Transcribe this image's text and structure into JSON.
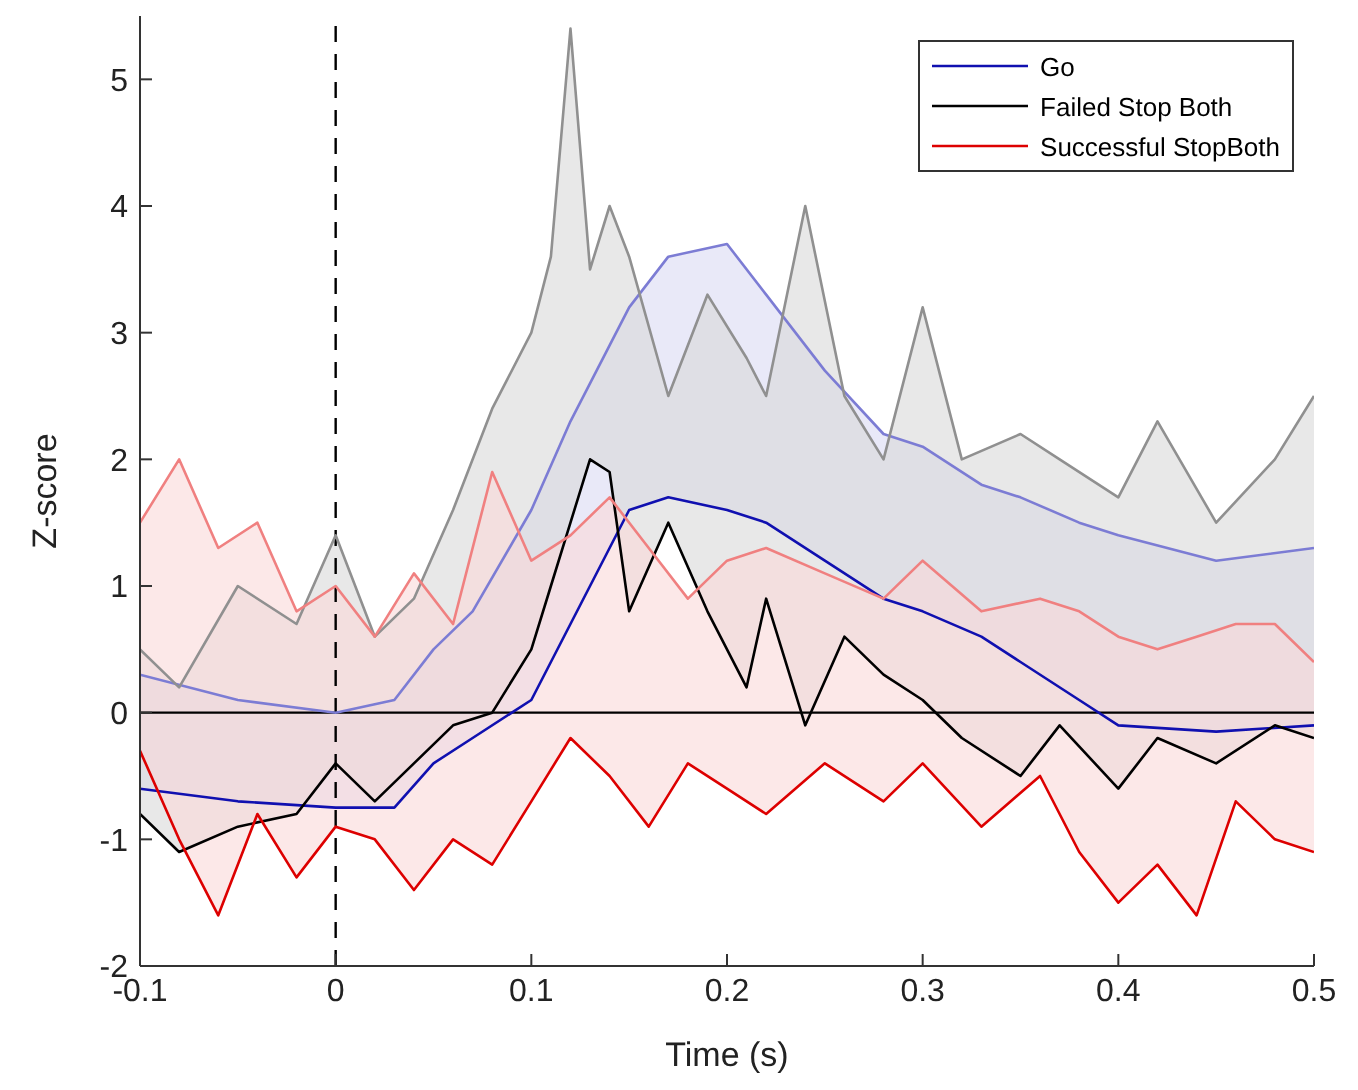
{
  "chart_data": {
    "type": "line",
    "xlabel": "Time (s)",
    "ylabel": "Z-score",
    "xlim": [
      -0.1,
      0.5
    ],
    "xticks": [
      -0.1,
      0,
      0.1,
      0.2,
      0.3,
      0.4,
      0.5
    ],
    "ylim": [
      -2,
      5.5
    ],
    "yticks": [
      -2,
      -1,
      0,
      1,
      2,
      3,
      4,
      5
    ],
    "legend": "top right",
    "marker": "none",
    "line_style": "solid",
    "ref_lines": [
      {
        "axis": "y",
        "value": 0,
        "color": "#000000",
        "line_style": "solid"
      },
      {
        "axis": "x",
        "value": 0,
        "color": "#000000",
        "line_style": "dashed"
      }
    ],
    "series": [
      {
        "name": "Go",
        "color": "#1010b0",
        "x": [
          -0.1,
          -0.05,
          0,
          0.03,
          0.05,
          0.07,
          0.1,
          0.12,
          0.14,
          0.15,
          0.17,
          0.2,
          0.22,
          0.25,
          0.28,
          0.3,
          0.33,
          0.35,
          0.38,
          0.4,
          0.45,
          0.5
        ],
        "values": [
          -0.6,
          -0.7,
          -0.75,
          -0.75,
          -0.4,
          -0.2,
          0.1,
          0.7,
          1.3,
          1.6,
          1.7,
          1.6,
          1.5,
          1.2,
          0.9,
          0.8,
          0.6,
          0.4,
          0.1,
          -0.1,
          -0.15,
          -0.1
        ],
        "lower": [
          -0.6,
          -0.7,
          -0.75,
          -0.75,
          -0.4,
          -0.2,
          0.1,
          0.7,
          1.3,
          1.6,
          1.7,
          1.6,
          1.5,
          1.2,
          0.9,
          0.8,
          0.6,
          0.4,
          0.1,
          -0.1,
          -0.15,
          -0.1
        ],
        "upper": [
          0.3,
          0.1,
          0.0,
          0.1,
          0.5,
          0.8,
          1.6,
          2.3,
          2.9,
          3.2,
          3.6,
          3.7,
          3.3,
          2.7,
          2.2,
          2.1,
          1.8,
          1.7,
          1.5,
          1.4,
          1.2,
          1.3
        ]
      },
      {
        "name": "Failed Stop Both",
        "color": "#000000",
        "x": [
          -0.1,
          -0.08,
          -0.05,
          -0.02,
          0,
          0.02,
          0.04,
          0.06,
          0.08,
          0.1,
          0.11,
          0.12,
          0.13,
          0.14,
          0.15,
          0.17,
          0.19,
          0.21,
          0.22,
          0.24,
          0.26,
          0.28,
          0.3,
          0.32,
          0.35,
          0.37,
          0.4,
          0.42,
          0.45,
          0.48,
          0.5
        ],
        "values": [
          -0.8,
          -1.1,
          -0.9,
          -0.8,
          -0.4,
          -0.7,
          -0.4,
          -0.1,
          0.0,
          0.5,
          1.0,
          1.5,
          2.0,
          1.9,
          0.8,
          1.5,
          0.8,
          0.2,
          0.9,
          -0.1,
          0.6,
          0.3,
          0.1,
          -0.2,
          -0.5,
          -0.1,
          -0.6,
          -0.2,
          -0.4,
          -0.1,
          -0.2
        ],
        "lower": [
          -0.8,
          -1.1,
          -0.9,
          -0.8,
          -0.4,
          -0.7,
          -0.4,
          -0.1,
          0.0,
          0.5,
          1.0,
          1.5,
          2.0,
          1.9,
          0.8,
          1.5,
          0.8,
          0.2,
          0.9,
          -0.1,
          0.6,
          0.3,
          0.1,
          -0.2,
          -0.5,
          -0.1,
          -0.6,
          -0.2,
          -0.4,
          -0.1,
          -0.2
        ],
        "upper": [
          0.5,
          0.2,
          1.0,
          0.7,
          1.4,
          0.6,
          0.9,
          1.6,
          2.4,
          3.0,
          3.6,
          5.4,
          3.5,
          4.0,
          3.6,
          2.5,
          3.3,
          2.8,
          2.5,
          4.0,
          2.5,
          2.0,
          3.2,
          2.0,
          2.2,
          2.0,
          1.7,
          2.3,
          1.5,
          2.0,
          2.5
        ]
      },
      {
        "color": "#7c7cd4",
        "x": [
          -0.1,
          -0.05,
          0,
          0.03,
          0.05,
          0.07,
          0.1,
          0.12,
          0.14,
          0.15,
          0.17,
          0.2,
          0.22,
          0.25,
          0.28,
          0.3,
          0.33,
          0.35,
          0.38,
          0.4,
          0.45,
          0.5
        ],
        "values": [
          0.3,
          0.1,
          0.0,
          0.1,
          0.5,
          0.8,
          1.6,
          2.3,
          2.9,
          3.2,
          3.6,
          3.7,
          3.3,
          2.7,
          2.2,
          2.1,
          1.8,
          1.7,
          1.5,
          1.4,
          1.2,
          1.3
        ]
      },
      {
        "color": "#909090",
        "x": [
          -0.1,
          -0.08,
          -0.05,
          -0.02,
          0,
          0.02,
          0.04,
          0.06,
          0.08,
          0.1,
          0.11,
          0.12,
          0.13,
          0.14,
          0.15,
          0.17,
          0.19,
          0.21,
          0.22,
          0.24,
          0.26,
          0.28,
          0.3,
          0.32,
          0.35,
          0.37,
          0.4,
          0.42,
          0.45,
          0.48,
          0.5
        ],
        "values": [
          0.5,
          0.2,
          1.0,
          0.7,
          1.4,
          0.6,
          0.9,
          1.6,
          2.4,
          3.0,
          3.6,
          5.4,
          3.5,
          4.0,
          3.6,
          2.5,
          3.3,
          2.8,
          2.5,
          4.0,
          2.5,
          2.0,
          3.2,
          2.0,
          2.2,
          2.0,
          1.7,
          2.3,
          1.5,
          2.0,
          2.5
        ]
      },
      {
        "name": "Successful StopBoth",
        "color": "#dd0000",
        "x": [
          -0.1,
          -0.08,
          -0.06,
          -0.04,
          -0.02,
          0,
          0.02,
          0.04,
          0.06,
          0.08,
          0.1,
          0.12,
          0.14,
          0.16,
          0.18,
          0.2,
          0.22,
          0.25,
          0.28,
          0.3,
          0.33,
          0.36,
          0.38,
          0.4,
          0.42,
          0.44,
          0.46,
          0.48,
          0.5
        ],
        "values": [
          -0.3,
          -1.0,
          -1.6,
          -0.8,
          -1.3,
          -0.9,
          -1.0,
          -1.4,
          -1.0,
          -1.2,
          -0.7,
          -0.2,
          -0.5,
          -0.9,
          -0.4,
          -0.6,
          -0.8,
          -0.4,
          -0.7,
          -0.4,
          -0.9,
          -0.5,
          -1.1,
          -1.5,
          -1.2,
          -1.6,
          -0.7,
          -1.0,
          -1.1
        ],
        "lower": [
          -0.3,
          -1.0,
          -1.6,
          -0.8,
          -1.3,
          -0.9,
          -1.0,
          -1.4,
          -1.0,
          -1.2,
          -0.7,
          -0.2,
          -0.5,
          -0.9,
          -0.4,
          -0.6,
          -0.8,
          -0.4,
          -0.7,
          -0.4,
          -0.9,
          -0.5,
          -1.1,
          -1.5,
          -1.2,
          -1.6,
          -0.7,
          -1.0,
          -1.1
        ],
        "upper": [
          1.5,
          2.0,
          1.3,
          1.5,
          0.8,
          1.0,
          0.6,
          1.1,
          0.7,
          1.9,
          1.2,
          1.4,
          1.7,
          1.3,
          0.9,
          1.2,
          1.3,
          1.1,
          0.9,
          1.2,
          0.8,
          0.9,
          0.8,
          0.6,
          0.5,
          0.6,
          0.7,
          0.7,
          0.4
        ]
      },
      {
        "color": "#f08080",
        "x": [
          -0.1,
          -0.08,
          -0.06,
          -0.04,
          -0.02,
          0,
          0.02,
          0.04,
          0.06,
          0.08,
          0.1,
          0.12,
          0.14,
          0.16,
          0.18,
          0.2,
          0.22,
          0.25,
          0.28,
          0.3,
          0.33,
          0.36,
          0.38,
          0.4,
          0.42,
          0.44,
          0.46,
          0.48,
          0.5
        ],
        "values": [
          1.5,
          2.0,
          1.3,
          1.5,
          0.8,
          1.0,
          0.6,
          1.1,
          0.7,
          1.9,
          1.2,
          1.4,
          1.7,
          1.3,
          0.9,
          1.2,
          1.3,
          1.1,
          0.9,
          1.2,
          0.8,
          0.9,
          0.8,
          0.6,
          0.5,
          0.6,
          0.7,
          0.7,
          0.4
        ]
      }
    ]
  }
}
